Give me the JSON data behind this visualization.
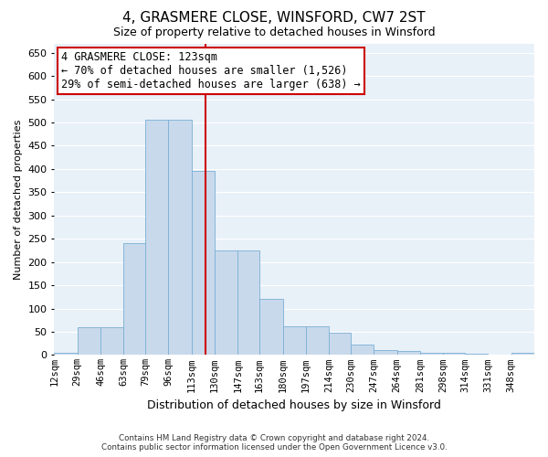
{
  "title": "4, GRASMERE CLOSE, WINSFORD, CW7 2ST",
  "subtitle": "Size of property relative to detached houses in Winsford",
  "xlabel": "Distribution of detached houses by size in Winsford",
  "ylabel": "Number of detached properties",
  "bar_color": "#c8d9ec",
  "bar_edge_color": "#7aafd4",
  "background_color": "#e8f0f8",
  "grid_color": "#ffffff",
  "vline_x": 123,
  "vline_color": "#cc0000",
  "annotation_line1": "4 GRASMERE CLOSE: 123sqm",
  "annotation_line2": "← 70% of detached houses are smaller (1,526)",
  "annotation_line3": "29% of semi-detached houses are larger (638) →",
  "annotation_box_color": "#ffffff",
  "annotation_box_edge": "#cc0000",
  "footer_text": "Contains HM Land Registry data © Crown copyright and database right 2024.\nContains public sector information licensed under the Open Government Licence v3.0.",
  "bin_edges": [
    12,
    29,
    46,
    63,
    79,
    96,
    113,
    130,
    147,
    163,
    180,
    197,
    214,
    230,
    247,
    264,
    281,
    298,
    314,
    331,
    348,
    365
  ],
  "bin_labels": [
    "12sqm",
    "29sqm",
    "46sqm",
    "63sqm",
    "79sqm",
    "96sqm",
    "113sqm",
    "130sqm",
    "147sqm",
    "163sqm",
    "180sqm",
    "197sqm",
    "214sqm",
    "230sqm",
    "247sqm",
    "264sqm",
    "281sqm",
    "298sqm",
    "314sqm",
    "331sqm",
    "348sqm"
  ],
  "bar_heights": [
    5,
    60,
    60,
    240,
    505,
    505,
    395,
    225,
    225,
    120,
    62,
    62,
    47,
    22,
    10,
    8,
    5,
    5,
    2,
    0,
    5
  ],
  "ylim": [
    0,
    670
  ],
  "yticks": [
    0,
    50,
    100,
    150,
    200,
    250,
    300,
    350,
    400,
    450,
    500,
    550,
    600,
    650
  ],
  "title_fontsize": 11,
  "subtitle_fontsize": 9,
  "ylabel_fontsize": 8,
  "xlabel_fontsize": 9,
  "tick_fontsize": 8,
  "xtick_fontsize": 7.5,
  "annotation_fontsize": 8.5
}
